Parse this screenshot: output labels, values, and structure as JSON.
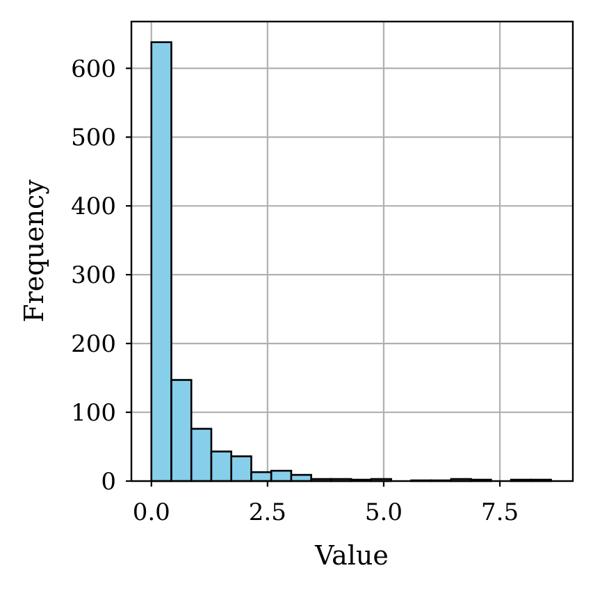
{
  "chart_data": {
    "type": "bar",
    "xlabel": "Value",
    "ylabel": "Frequency",
    "xlim": [
      -0.43,
      9.07
    ],
    "ylim": [
      0,
      668
    ],
    "grid": true,
    "bar_color": "#87ceeb",
    "edge_color": "#000000",
    "bin_width": 0.43,
    "bin_starts": [
      0.0,
      0.43,
      0.86,
      1.29,
      1.72,
      2.15,
      2.58,
      3.01,
      3.44,
      3.87,
      4.3,
      4.73,
      5.16,
      5.59,
      6.02,
      6.45,
      6.88,
      7.31,
      7.74,
      8.17
    ],
    "values": [
      638,
      147,
      76,
      43,
      36,
      13,
      15,
      9,
      3,
      3,
      2,
      3,
      0,
      1,
      1,
      3,
      2,
      0,
      2,
      2
    ],
    "xticks": [
      0.0,
      2.5,
      5.0,
      7.5
    ],
    "xtick_labels": [
      "0.0",
      "2.5",
      "5.0",
      "7.5"
    ],
    "yticks": [
      0,
      100,
      200,
      300,
      400,
      500,
      600
    ],
    "ytick_labels": [
      "0",
      "100",
      "200",
      "300",
      "400",
      "500",
      "600"
    ]
  }
}
